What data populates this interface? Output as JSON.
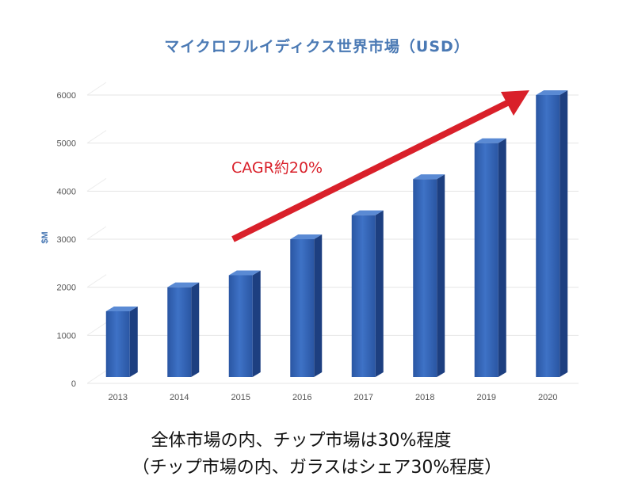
{
  "chart_data": {
    "type": "bar",
    "title": "マイクロフルイディクス世界市場（USD）",
    "xlabel": "",
    "ylabel": "$M",
    "categories": [
      "2013",
      "2014",
      "2015",
      "2016",
      "2017",
      "2018",
      "2019",
      "2020"
    ],
    "values": [
      1500,
      2000,
      2250,
      3000,
      3500,
      4250,
      5000,
      6000
    ],
    "ylim": [
      0,
      6000
    ],
    "yticks": [
      0,
      1000,
      2000,
      3000,
      4000,
      5000,
      6000
    ],
    "grid": true,
    "bar_color": "#2f5fae",
    "annotation": {
      "text": "CAGR約20%",
      "color": "#d9202a",
      "arrow": "upward trend arrow from 2015 to 2020"
    }
  },
  "captions": {
    "line1": "全体市場の内、チップ市場は30%程度",
    "line2": "（チップ市場の内、ガラスはシェア30%程度）"
  }
}
